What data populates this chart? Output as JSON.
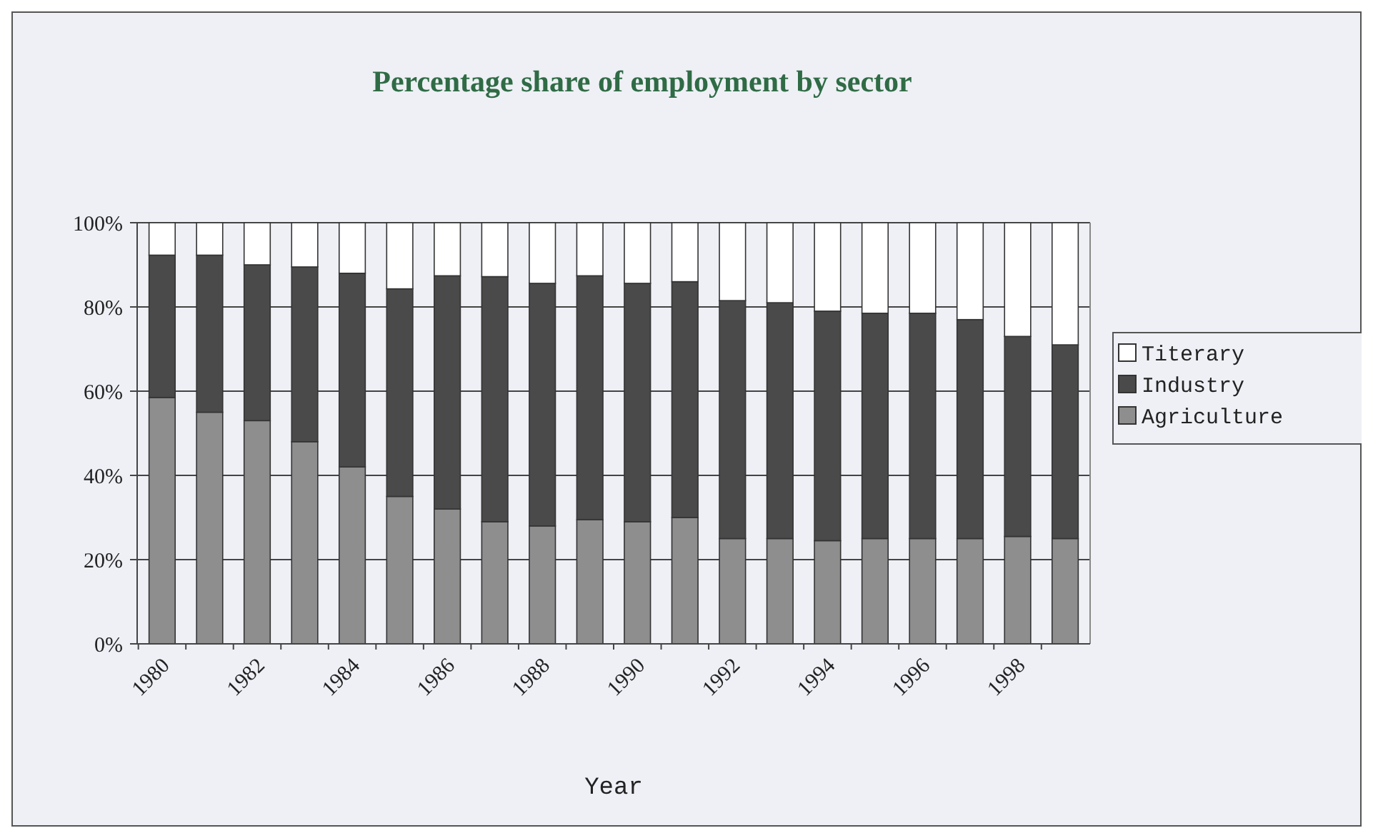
{
  "chart_data": {
    "type": "bar",
    "stacked": true,
    "title": "Percentage share of employment by sector",
    "xlabel": "Year",
    "categories": [
      "1980",
      null,
      "1982",
      null,
      "1984",
      null,
      "1986",
      null,
      "1988",
      null,
      "1990",
      null,
      "1992",
      null,
      "1994",
      null,
      "1996",
      null,
      "1998",
      null
    ],
    "series": [
      {
        "name": "Agriculture",
        "color": "#8e8e8e",
        "values": [
          58.5,
          55,
          53,
          48,
          42,
          35,
          32,
          29,
          28,
          29.5,
          29,
          30,
          25,
          25,
          24.5,
          25,
          25,
          25,
          25.5,
          25
        ]
      },
      {
        "name": "Industry",
        "color": "#4a4a4a",
        "values": [
          33.8,
          37.3,
          37,
          41.5,
          46,
          49.3,
          55.4,
          58.2,
          57.6,
          57.9,
          56.6,
          56,
          56.5,
          56,
          54.5,
          53.5,
          53.5,
          52,
          47.5,
          46
        ]
      },
      {
        "name": "Titerary",
        "color": "#ffffff",
        "values": [
          7.7,
          7.7,
          10,
          10.5,
          12,
          15.7,
          12.6,
          12.8,
          14.4,
          12.6,
          14.4,
          14,
          18.5,
          19,
          21,
          21.5,
          21.5,
          23,
          27,
          29
        ]
      }
    ],
    "ylim": [
      0,
      100
    ],
    "yticks": [
      {
        "value": 0,
        "label": "0%"
      },
      {
        "value": 20,
        "label": "20%"
      },
      {
        "value": 40,
        "label": "40%"
      },
      {
        "value": 60,
        "label": "60%"
      },
      {
        "value": 80,
        "label": "80%"
      },
      {
        "value": 100,
        "label": "100%"
      }
    ],
    "grid": "y",
    "legend": "right"
  }
}
